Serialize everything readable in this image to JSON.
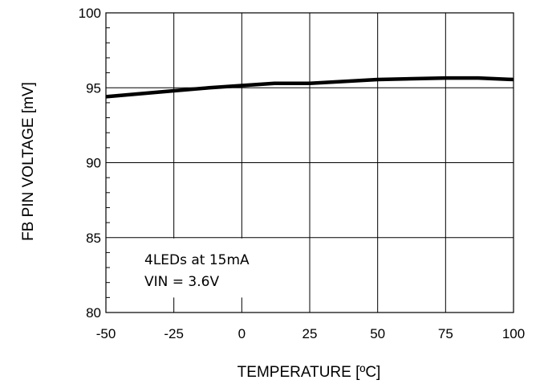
{
  "chart_data": {
    "type": "line",
    "xlabel": "TEMPERATURE [ºC]",
    "ylabel": "FB PIN VOLTAGE [mV]",
    "xlim": [
      -50,
      100
    ],
    "ylim": [
      80,
      100
    ],
    "xticks": [
      "-50",
      "-25",
      "0",
      "25",
      "50",
      "75",
      "100"
    ],
    "yticks": [
      "80",
      "85",
      "90",
      "95",
      "100"
    ],
    "grid": true,
    "series": [
      {
        "x": [
          -50,
          -25,
          -12,
          0,
          12,
          25,
          50,
          75,
          87,
          100
        ],
        "values": [
          94.4,
          94.8,
          95.0,
          95.15,
          95.3,
          95.3,
          95.55,
          95.65,
          95.65,
          95.55
        ],
        "color": "#000000"
      }
    ],
    "annotations": [
      "4LEDs at 15mA",
      "VIN = 3.6V"
    ]
  }
}
